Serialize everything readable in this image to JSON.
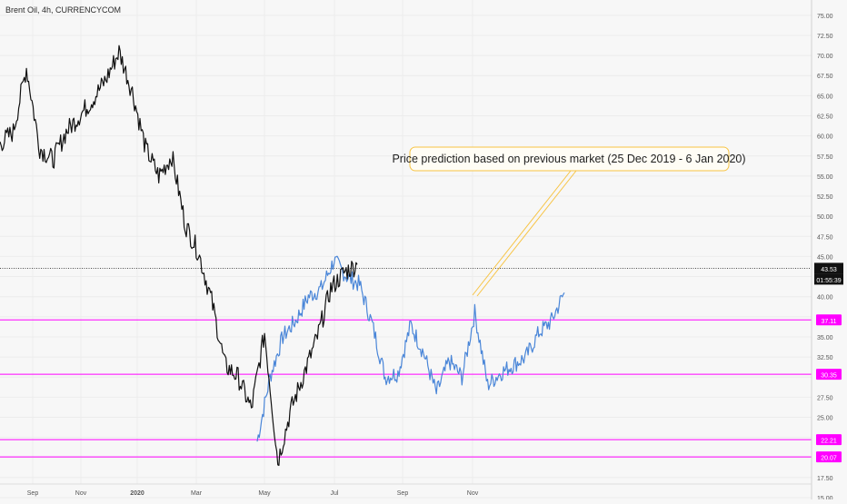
{
  "symbol_label": "Brent Oil, 4h, CURRENCYCOM",
  "annotation": "Price prediction based on previous market (25 Dec 2019 - 6 Jan 2020)",
  "last_price_label": "43.53",
  "countdown_label": "01:55:39",
  "colors": {
    "background": "#f7f7f7",
    "grid": "#ececec",
    "historical_series": "#111111",
    "prediction_series": "#4a86d8",
    "level_lines": "#ff00ff",
    "annotation_border": "#f7c444",
    "annotation_fill": "#fffdf5"
  },
  "chart_data": {
    "type": "line",
    "y_axis_position": "right",
    "ylim": [
      15.0,
      76.0
    ],
    "y_ticks": [
      "75.00",
      "72.50",
      "70.00",
      "67.50",
      "65.00",
      "62.50",
      "60.00",
      "57.50",
      "55.00",
      "52.50",
      "50.00",
      "47.50",
      "45.00",
      "42.50",
      "40.00",
      "37.50",
      "35.00",
      "32.50",
      "30.00",
      "27.50",
      "25.00",
      "22.50",
      "20.00",
      "17.50",
      "15.00"
    ],
    "x_ticks": [
      "Sep",
      "Nov",
      "2020",
      "Mar",
      "May",
      "Jul",
      "Sep",
      "Nov"
    ],
    "last_price": 43.53,
    "horizontal_levels": [
      {
        "value": 37.11,
        "label": "37.11"
      },
      {
        "value": 30.35,
        "label": "30.35"
      },
      {
        "value": 22.21,
        "label": "22.21"
      },
      {
        "value": 20.07,
        "label": "20.07"
      }
    ],
    "series": [
      {
        "role": "historical",
        "x": [
          "Aug 2019",
          "Sep 2019",
          "Sep 2019",
          "Oct 2019",
          "Oct 2019",
          "Nov 2019",
          "Nov 2019",
          "Dec 2019",
          "Dec 2019",
          "Jan 2020",
          "Jan 2020",
          "Jan 2020",
          "Feb 2020",
          "Feb 2020",
          "Mar 2020",
          "Mar 2020",
          "Mar 2020",
          "Mar 2020",
          "Apr 2020",
          "Apr 2020",
          "Apr 2020",
          "Apr 2020",
          "May 2020",
          "May 2020",
          "Jun 2020",
          "Jun 2020",
          "Jul 2020",
          "Jul 2020"
        ],
        "values": [
          59.0,
          60.5,
          68.5,
          58.5,
          57.0,
          60.5,
          62.5,
          64.5,
          67.0,
          70.5,
          65.5,
          58.5,
          55.0,
          57.5,
          49.0,
          45.5,
          39.5,
          31.5,
          30.0,
          26.0,
          35.5,
          19.5,
          26.0,
          30.5,
          35.0,
          41.0,
          43.0,
          44.0
        ]
      },
      {
        "role": "prediction",
        "x": [
          "Apr 2020",
          "May 2020",
          "May 2020",
          "Jun 2020",
          "Jun 2020",
          "Jul 2020",
          "Jul 2020",
          "Jul 2020",
          "Aug 2020",
          "Aug 2020",
          "Aug 2020",
          "Sep 2020",
          "Sep 2020",
          "Sep 2020",
          "Oct 2020",
          "Oct 2020",
          "Oct 2020",
          "Nov 2020",
          "Nov 2020",
          "Nov 2020",
          "Dec 2020",
          "Dec 2020",
          "Dec 2020",
          "Jan 2021",
          "Jan 2021"
        ],
        "values": [
          22.0,
          30.0,
          35.0,
          37.0,
          40.0,
          41.0,
          44.5,
          42.5,
          41.5,
          36.5,
          30.0,
          30.5,
          36.5,
          33.0,
          28.0,
          32.0,
          30.0,
          38.0,
          29.0,
          30.5,
          31.5,
          32.5,
          35.5,
          37.0,
          40.5
        ]
      }
    ]
  }
}
